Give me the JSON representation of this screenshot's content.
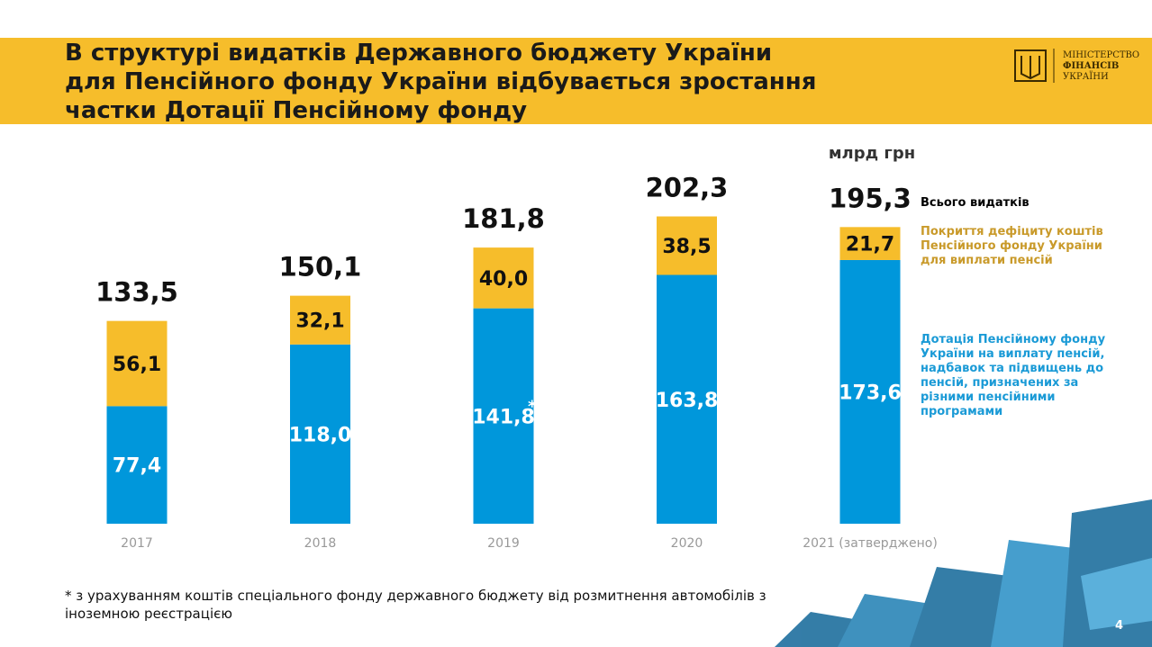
{
  "header": {
    "title_lines": [
      "В структурі видатків Державного бюджету України",
      "для Пенсійного фонду України відбувається зростання",
      "частки Дотації Пенсійному фонду"
    ],
    "logo_lines": [
      "МІНІСТЕРСТВО",
      "ФІНАНСІВ",
      "УКРАЇНИ"
    ]
  },
  "chart_data": {
    "type": "stacked_bar",
    "unit": "млрд грн",
    "categories": [
      "2017",
      "2018",
      "2019",
      "2020",
      "2021 (затверджено)"
    ],
    "series": [
      {
        "name": "Дотація Пенсійному фонду України на виплату пенсій, надбавок та підвищень до пенсій, призначених за різними пенсійними програмами",
        "color": "#0097db",
        "values": [
          77.4,
          118.0,
          141.8,
          163.8,
          173.6
        ],
        "value_labels": [
          "77,4",
          "118,0",
          "141,8",
          "163,8",
          "173,6"
        ]
      },
      {
        "name": "Покриття дефіциту коштів Пенсійного фонду України для виплати пенсій",
        "color": "#f6bd2b",
        "values": [
          56.1,
          32.1,
          40.0,
          38.5,
          21.7
        ],
        "value_labels": [
          "56,1",
          "32,1",
          "40,0",
          "38,5",
          "21,7"
        ]
      }
    ],
    "totals": [
      133.5,
      150.1,
      181.8,
      202.3,
      195.3
    ],
    "total_labels": [
      "133,5",
      "150,1",
      "181,8",
      "202,3",
      "195,3"
    ],
    "total_name": "Всього видатків",
    "note_marker": {
      "category": 2,
      "text": "*"
    },
    "ylim": [
      0,
      250
    ]
  },
  "footnote": "* з урахуванням коштів спеціального фонду державного бюджету від розмитнення автомобілів з іноземною реєстрацією",
  "page_number": "4"
}
